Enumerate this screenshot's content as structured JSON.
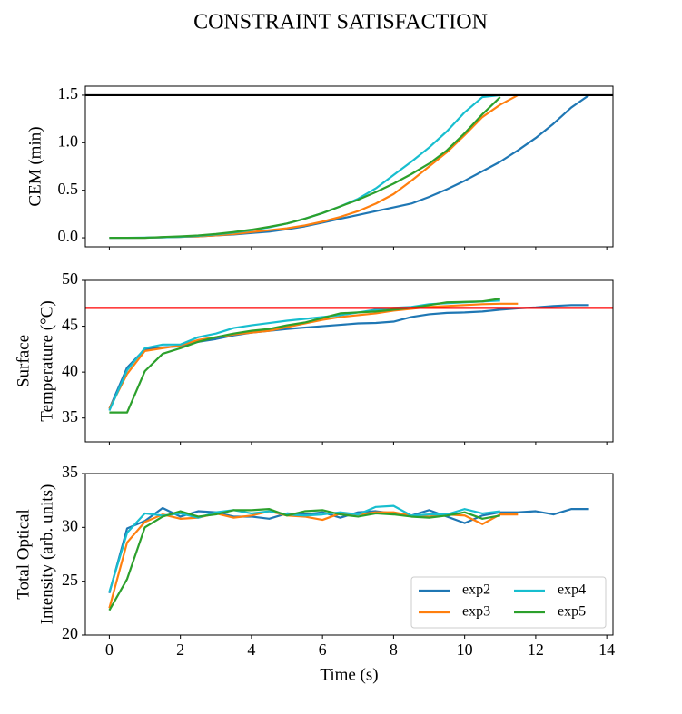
{
  "title": "CONSTRAINT SATISFACTION",
  "chart_data": [
    {
      "type": "line",
      "ylabel": [
        "CEM (min)"
      ],
      "xlim": [
        -0.675,
        14.175
      ],
      "xticks": [
        0,
        2,
        4,
        6,
        8,
        10,
        12,
        14
      ],
      "show_xtick_labels": false,
      "ylim": [
        -0.095,
        1.595
      ],
      "yticks": [
        {
          "value": 0,
          "label": "0.0"
        },
        0.5,
        {
          "value": 1,
          "label": "1.0"
        },
        1.5
      ],
      "hline": 1.5,
      "hline_color": "#000000",
      "legend": false,
      "series": [
        {
          "name": "exp2",
          "color": "#1f77b4",
          "x": [
            0,
            0.5,
            1,
            1.5,
            2,
            2.5,
            3,
            3.5,
            4,
            4.5,
            5,
            5.5,
            6,
            6.5,
            7,
            7.5,
            8,
            8.5,
            9,
            9.5,
            10,
            10.5,
            11,
            11.5,
            12,
            12.5,
            13,
            13.5
          ],
          "values": [
            0,
            0,
            0,
            0.005,
            0.01,
            0.015,
            0.025,
            0.035,
            0.05,
            0.065,
            0.09,
            0.12,
            0.16,
            0.2,
            0.24,
            0.28,
            0.32,
            0.36,
            0.43,
            0.51,
            0.6,
            0.7,
            0.8,
            0.92,
            1.05,
            1.2,
            1.37,
            1.5
          ]
        },
        {
          "name": "exp3",
          "color": "#ff7f0e",
          "x": [
            0,
            0.5,
            1,
            1.5,
            2,
            2.5,
            3,
            3.5,
            4,
            4.5,
            5,
            5.5,
            6,
            6.5,
            7,
            7.5,
            8,
            8.5,
            9,
            9.5,
            10,
            10.5,
            11,
            11.5
          ],
          "values": [
            0,
            0,
            0,
            0.005,
            0.01,
            0.015,
            0.025,
            0.04,
            0.06,
            0.08,
            0.1,
            0.13,
            0.17,
            0.22,
            0.28,
            0.36,
            0.46,
            0.6,
            0.75,
            0.9,
            1.08,
            1.27,
            1.4,
            1.5
          ]
        },
        {
          "name": "exp4",
          "color": "#17becf",
          "x": [
            0,
            0.5,
            1,
            1.5,
            2,
            2.5,
            3,
            3.5,
            4,
            4.5,
            5,
            5.5,
            6,
            6.5,
            7,
            7.5,
            8,
            8.5,
            9,
            9.5,
            10,
            10.5,
            11
          ],
          "values": [
            0,
            0,
            0.002,
            0.005,
            0.01,
            0.02,
            0.035,
            0.055,
            0.08,
            0.11,
            0.15,
            0.2,
            0.26,
            0.33,
            0.41,
            0.52,
            0.66,
            0.8,
            0.95,
            1.12,
            1.32,
            1.48,
            1.5
          ]
        },
        {
          "name": "exp5",
          "color": "#2ca02c",
          "x": [
            0,
            0.5,
            1,
            1.5,
            2,
            2.5,
            3,
            3.5,
            4,
            4.5,
            5,
            5.5,
            6,
            6.5,
            7,
            7.5,
            8,
            8.5,
            9,
            9.5,
            10,
            10.5,
            11
          ],
          "values": [
            0,
            0,
            0,
            0.008,
            0.015,
            0.025,
            0.04,
            0.06,
            0.085,
            0.115,
            0.15,
            0.2,
            0.26,
            0.33,
            0.4,
            0.48,
            0.57,
            0.67,
            0.78,
            0.92,
            1.1,
            1.3,
            1.48
          ]
        }
      ]
    },
    {
      "type": "line",
      "ylabel": [
        "Surface",
        "Temperature (°C)"
      ],
      "xlim": [
        -0.675,
        14.175
      ],
      "xticks": [
        0,
        2,
        4,
        6,
        8,
        10,
        12,
        14
      ],
      "show_xtick_labels": false,
      "ylim": [
        32.4,
        50
      ],
      "yticks": [
        35,
        40,
        45,
        50
      ],
      "hline": 47,
      "hline_color": "#ff0000",
      "legend": false,
      "series": [
        {
          "name": "exp2",
          "color": "#1f77b4",
          "x": [
            0,
            0.5,
            1,
            1.5,
            2,
            2.5,
            3,
            3.5,
            4,
            4.5,
            5,
            5.5,
            6,
            6.5,
            7,
            7.5,
            8,
            8.5,
            9,
            9.5,
            10,
            10.5,
            11,
            11.5,
            12,
            12.5,
            13,
            13.5
          ],
          "values": [
            36,
            40.5,
            42.5,
            42.7,
            42.8,
            43.3,
            43.6,
            44,
            44.3,
            44.5,
            44.7,
            44.85,
            45,
            45.15,
            45.3,
            45.35,
            45.5,
            46,
            46.3,
            46.45,
            46.5,
            46.6,
            46.8,
            46.95,
            47.05,
            47.2,
            47.3,
            47.3
          ]
        },
        {
          "name": "exp3",
          "color": "#ff7f0e",
          "x": [
            0,
            0.5,
            1,
            1.5,
            2,
            2.5,
            3,
            3.5,
            4,
            4.5,
            5,
            5.5,
            6,
            6.5,
            7,
            7.5,
            8,
            8.5,
            9,
            9.5,
            10,
            10.5,
            11,
            11.5
          ],
          "values": [
            36,
            39.8,
            42.3,
            42.6,
            42.9,
            43.5,
            43.8,
            44.1,
            44.3,
            44.5,
            44.9,
            45.3,
            45.7,
            46,
            46.2,
            46.4,
            46.7,
            46.9,
            47.1,
            47.2,
            47.3,
            47.4,
            47.45,
            47.45
          ]
        },
        {
          "name": "exp4",
          "color": "#17becf",
          "x": [
            0,
            0.5,
            1,
            1.5,
            2,
            2.5,
            3,
            3.5,
            4,
            4.5,
            5,
            5.5,
            6,
            6.5,
            7,
            7.5,
            8,
            8.5,
            9,
            9.5,
            10,
            10.5,
            11
          ],
          "values": [
            35.8,
            40.2,
            42.6,
            43,
            43,
            43.8,
            44.2,
            44.8,
            45.1,
            45.35,
            45.6,
            45.8,
            46,
            46.2,
            46.5,
            46.8,
            47,
            47.1,
            47.4,
            47.5,
            47.6,
            47.7,
            47.8
          ]
        },
        {
          "name": "exp5",
          "color": "#2ca02c",
          "x": [
            0,
            0.5,
            1,
            1.5,
            2,
            2.5,
            3,
            3.5,
            4,
            4.5,
            5,
            5.5,
            6,
            6.5,
            7,
            7.5,
            8,
            8.5,
            9,
            9.5,
            10,
            10.5,
            11
          ],
          "values": [
            35.6,
            35.6,
            40.1,
            42,
            42.6,
            43.3,
            43.8,
            44.2,
            44.5,
            44.7,
            45.1,
            45.4,
            45.9,
            46.4,
            46.5,
            46.6,
            46.8,
            47,
            47.3,
            47.6,
            47.65,
            47.7,
            48
          ]
        }
      ]
    },
    {
      "type": "line",
      "ylabel": [
        "Total Optical",
        "Intensity (arb. units)"
      ],
      "xlabel": "Time (s)",
      "xlim": [
        -0.675,
        14.175
      ],
      "xticks": [
        0,
        2,
        4,
        6,
        8,
        10,
        12,
        14
      ],
      "show_xtick_labels": true,
      "ylim": [
        20,
        35
      ],
      "yticks": [
        20,
        25,
        30,
        35
      ],
      "legend": "lower right",
      "legend_columns": 2,
      "series": [
        {
          "name": "exp2",
          "color": "#1f77b4",
          "x": [
            0,
            0.5,
            1,
            1.5,
            2,
            2.5,
            3,
            3.5,
            4,
            4.5,
            5,
            5.5,
            6,
            6.5,
            7,
            7.5,
            8,
            8.5,
            9,
            9.5,
            10,
            10.5,
            11,
            11.5,
            12,
            12.5,
            13,
            13.5
          ],
          "values": [
            23.9,
            29.9,
            30.6,
            31.8,
            31,
            31.5,
            31.4,
            31,
            31,
            30.8,
            31.3,
            31.2,
            31.4,
            30.9,
            31.4,
            31.5,
            31.3,
            31.1,
            31.6,
            31,
            30.4,
            31.1,
            31.4,
            31.4,
            31.5,
            31.2,
            31.7,
            31.7
          ]
        },
        {
          "name": "exp3",
          "color": "#ff7f0e",
          "x": [
            0,
            0.5,
            1,
            1.5,
            2,
            2.5,
            3,
            3.5,
            4,
            4.5,
            5,
            5.5,
            6,
            6.5,
            7,
            7.5,
            8,
            8.5,
            9,
            9.5,
            10,
            10.5,
            11,
            11.5
          ],
          "values": [
            22.5,
            28.6,
            30.5,
            31.2,
            30.8,
            30.9,
            31.3,
            30.9,
            31.1,
            31.5,
            31.1,
            31,
            30.7,
            31.3,
            31.2,
            31.4,
            31.4,
            31.1,
            31,
            31.2,
            31.1,
            30.3,
            31.2,
            31.2
          ]
        },
        {
          "name": "exp4",
          "color": "#17becf",
          "x": [
            0,
            0.5,
            1,
            1.5,
            2,
            2.5,
            3,
            3.5,
            4,
            4.5,
            5,
            5.5,
            6,
            6.5,
            7,
            7.5,
            8,
            8.5,
            9,
            9.5,
            10,
            10.5,
            11
          ],
          "values": [
            24,
            29.5,
            31.3,
            31.1,
            31.3,
            30.9,
            31.4,
            31.6,
            31.3,
            31.5,
            31.2,
            31.1,
            31.2,
            31.4,
            31.2,
            31.9,
            32,
            31.1,
            31.2,
            31.2,
            31.7,
            31.3,
            31.5
          ]
        },
        {
          "name": "exp5",
          "color": "#2ca02c",
          "x": [
            0,
            0.5,
            1,
            1.5,
            2,
            2.5,
            3,
            3.5,
            4,
            4.5,
            5,
            5.5,
            6,
            6.5,
            7,
            7.5,
            8,
            8.5,
            9,
            9.5,
            10,
            10.5,
            11
          ],
          "values": [
            22.3,
            25.2,
            30,
            31,
            31.5,
            31,
            31.2,
            31.6,
            31.6,
            31.7,
            31.1,
            31.5,
            31.6,
            31.2,
            31,
            31.3,
            31.2,
            31,
            30.9,
            31.1,
            31.4,
            30.8,
            31.1
          ]
        }
      ]
    }
  ]
}
